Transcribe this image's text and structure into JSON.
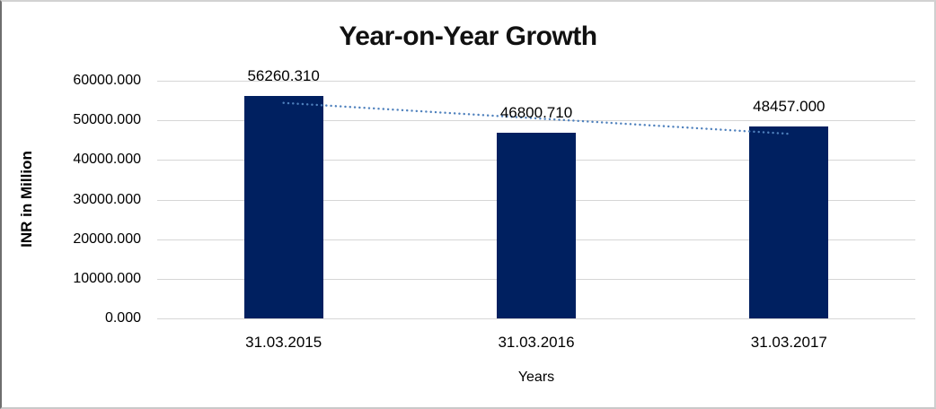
{
  "chart_data": {
    "type": "bar",
    "title": "Year-on-Year Growth",
    "xlabel": "Years",
    "ylabel": "INR in Million",
    "categories": [
      "31.03.2015",
      "31.03.2016",
      "31.03.2017"
    ],
    "values": [
      56260.31,
      46800.71,
      48457.0
    ],
    "data_labels": [
      "56260.310",
      "46800.710",
      "48457.000"
    ],
    "y_ticks": [
      "60000.000",
      "50000.000",
      "40000.000",
      "30000.000",
      "20000.000",
      "10000.000",
      "0.000"
    ],
    "ylim": [
      0,
      60000
    ],
    "grid": "horizontal",
    "legend": "none",
    "colors": {
      "bar": "#002060",
      "trendline": "#4f81bd",
      "gridline": "#d6d6d6",
      "text": "#000000"
    },
    "trendline": {
      "type": "linear",
      "style": "dotted"
    }
  }
}
